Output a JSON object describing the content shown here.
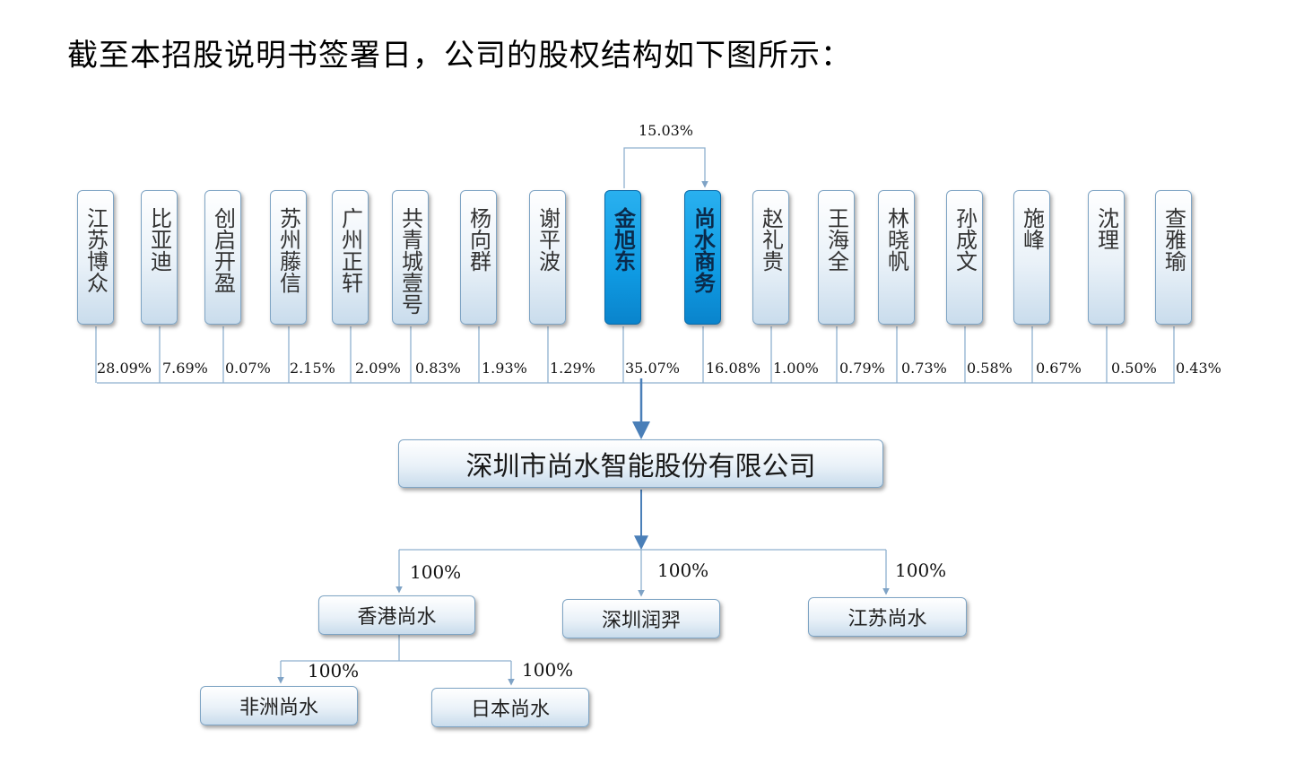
{
  "intro": "截至本招股说明书签署日，公司的股权结构如下图所示：",
  "shareholders": [
    {
      "name": "江苏博众",
      "pct": "28.09%"
    },
    {
      "name": "比亚迪",
      "pct": "7.69%"
    },
    {
      "name": "创启开盈",
      "pct": "0.07%"
    },
    {
      "name": "苏州藤信",
      "pct": "2.15%"
    },
    {
      "name": "广州正轩",
      "pct": "2.09%"
    },
    {
      "name": "共青城壹号",
      "pct": "0.83%"
    },
    {
      "name": "杨向群",
      "pct": "1.93%"
    },
    {
      "name": "谢平波",
      "pct": "1.29%"
    },
    {
      "name": "金旭东",
      "pct": "35.07%"
    },
    {
      "name": "尚水商务",
      "pct": "16.08%"
    },
    {
      "name": "赵礼贵",
      "pct": "1.00%"
    },
    {
      "name": "王海全",
      "pct": "0.79%"
    },
    {
      "name": "林晓帆",
      "pct": "0.73%"
    },
    {
      "name": "孙成文",
      "pct": "0.58%"
    },
    {
      "name": "施峰",
      "pct": "0.67%"
    },
    {
      "name": "沈理",
      "pct": "0.50%"
    },
    {
      "name": "查雅瑜",
      "pct": "0.43%"
    }
  ],
  "cross_holding_pct": "15.03%",
  "company": "深圳市尚水智能股份有限公司",
  "subsidiaries": [
    {
      "name": "香港尚水",
      "pct": "100%"
    },
    {
      "name": "深圳润羿",
      "pct": "100%"
    },
    {
      "name": "江苏尚水",
      "pct": "100%"
    }
  ],
  "hk_subsidiaries": [
    {
      "name": "非洲尚水",
      "pct": "100%"
    },
    {
      "name": "日本尚水",
      "pct": "100%"
    }
  ],
  "colors": {
    "line": "#8fb1cf",
    "arrow": "#4a7fb8",
    "highlight": "#0f9be3"
  }
}
